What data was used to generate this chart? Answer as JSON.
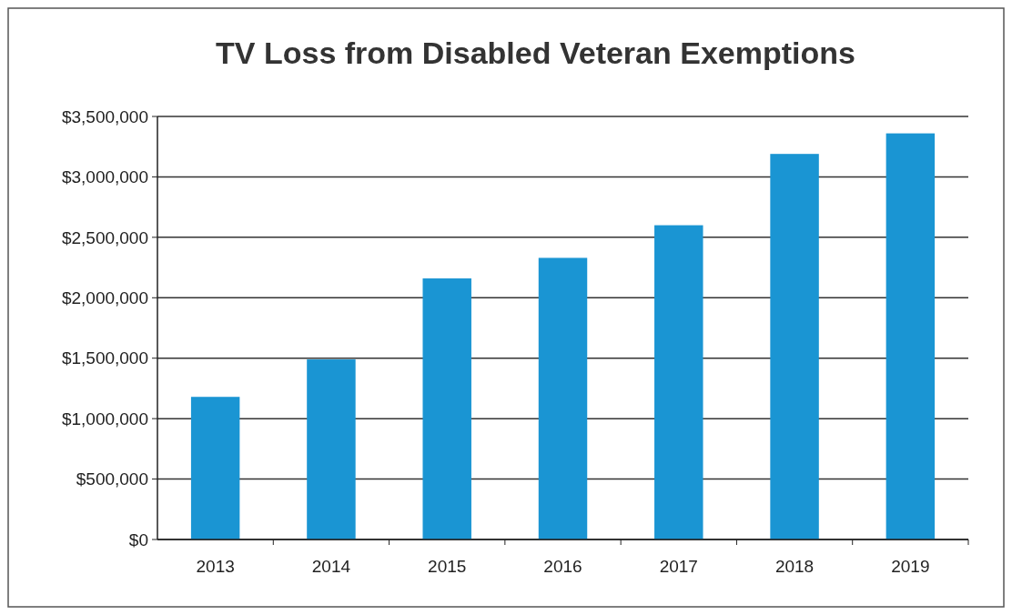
{
  "chart_data": {
    "type": "bar",
    "title": "TV Loss from Disabled Veteran Exemptions",
    "categories": [
      "2013",
      "2014",
      "2015",
      "2016",
      "2017",
      "2018",
      "2019"
    ],
    "values": [
      1180000,
      1490000,
      2160000,
      2330000,
      2600000,
      3190000,
      3360000
    ],
    "color": "#1a95d3",
    "ylim": [
      0,
      3500000
    ],
    "yticks": [
      {
        "value": 0,
        "label": "$0"
      },
      {
        "value": 500000,
        "label": "$500,000"
      },
      {
        "value": 1000000,
        "label": "$1,000,000"
      },
      {
        "value": 1500000,
        "label": "$1,500,000"
      },
      {
        "value": 2000000,
        "label": "$2,000,000"
      },
      {
        "value": 2500000,
        "label": "$2,500,000"
      },
      {
        "value": 3000000,
        "label": "$3,000,000"
      },
      {
        "value": 3500000,
        "label": "$3,500,000"
      }
    ],
    "grid": "y"
  }
}
